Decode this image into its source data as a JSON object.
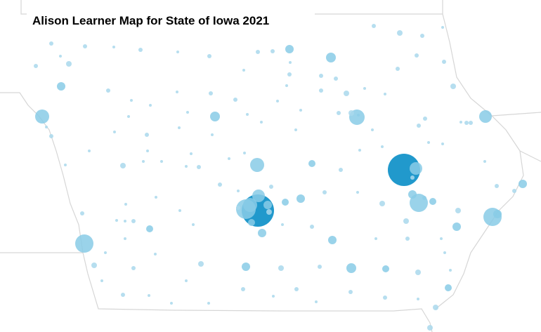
{
  "header": {
    "title": "Alison Learner Map for State of Iowa 2021"
  }
}
